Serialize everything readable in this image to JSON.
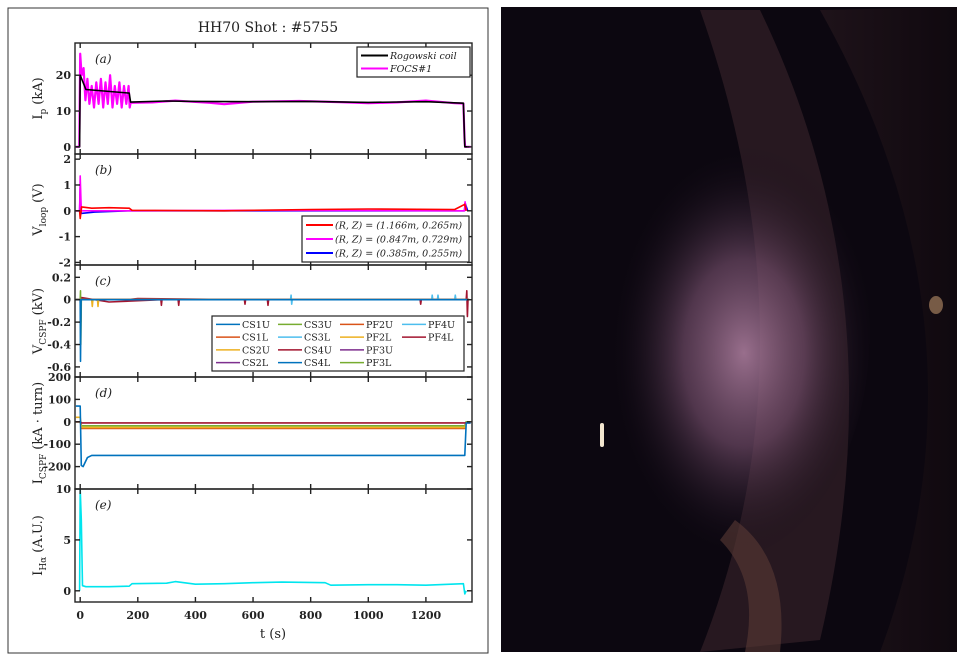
{
  "figure_title": "HH70 Shot : #5755",
  "xlabel": "t (s)",
  "x_ticks": [
    0,
    200,
    400,
    600,
    800,
    1000,
    1200
  ],
  "xlim": [
    -18,
    1360
  ],
  "photo": {
    "colors": {
      "dark": "#0c0710",
      "glow": "#a87a9a",
      "wall": "#3a2428",
      "spot": "#f3e6d0"
    }
  },
  "chart_data": [
    {
      "type": "line",
      "panel": "(a)",
      "ylabel": {
        "main": "I",
        "sub": "p",
        "unit": "(kA)"
      },
      "ylim": [
        -2,
        29
      ],
      "y_ticks": [
        0,
        10,
        20
      ],
      "grid": false,
      "legend": "top-right",
      "series": [
        {
          "name": "Rogowski coil",
          "color": "#000000",
          "points": [
            [
              -15,
              0
            ],
            [
              -2,
              0
            ],
            [
              0,
              20
            ],
            [
              20,
              16
            ],
            [
              170,
              15
            ],
            [
              175,
              12.5
            ],
            [
              300,
              12.8
            ],
            [
              400,
              12.7
            ],
            [
              600,
              12.6
            ],
            [
              800,
              12.7
            ],
            [
              1000,
              12.4
            ],
            [
              1200,
              12.6
            ],
            [
              1330,
              12.2
            ],
            [
              1335,
              0
            ],
            [
              1350,
              0
            ]
          ]
        },
        {
          "name": "FOCS#1",
          "color": "#ff00ff",
          "points": [
            [
              -15,
              0
            ],
            [
              -3,
              0
            ],
            [
              0,
              26
            ],
            [
              5,
              20
            ],
            [
              12,
              22
            ],
            [
              18,
              13
            ],
            [
              25,
              19
            ],
            [
              32,
              12
            ],
            [
              40,
              17
            ],
            [
              48,
              11
            ],
            [
              56,
              18
            ],
            [
              64,
              12
            ],
            [
              72,
              19
            ],
            [
              80,
              11
            ],
            [
              88,
              18
            ],
            [
              96,
              12
            ],
            [
              104,
              20
            ],
            [
              112,
              11
            ],
            [
              120,
              17
            ],
            [
              128,
              12
            ],
            [
              136,
              18
            ],
            [
              144,
              11
            ],
            [
              152,
              17
            ],
            [
              160,
              12
            ],
            [
              168,
              17
            ],
            [
              172,
              11
            ],
            [
              175,
              12.3
            ],
            [
              250,
              12.4
            ],
            [
              330,
              12.9
            ],
            [
              450,
              12.3
            ],
            [
              500,
              11.9
            ],
            [
              600,
              12.6
            ],
            [
              760,
              12.8
            ],
            [
              900,
              12.5
            ],
            [
              1000,
              12.2
            ],
            [
              1100,
              12.4
            ],
            [
              1200,
              12.9
            ],
            [
              1300,
              12.2
            ],
            [
              1330,
              12.1
            ],
            [
              1334,
              2.5
            ],
            [
              1336,
              0
            ],
            [
              1355,
              0
            ]
          ]
        }
      ]
    },
    {
      "type": "line",
      "panel": "(b)",
      "ylabel": {
        "main": "V",
        "sub": "loop",
        "unit": "(V)"
      },
      "ylim": [
        -2.1,
        2.2
      ],
      "y_ticks": [
        -2,
        -1,
        0,
        1,
        2
      ],
      "grid": false,
      "legend": "bottom-right",
      "series": [
        {
          "name": "(R, Z) = (1.166m, 0.265m)",
          "color": "#ff0000",
          "points": [
            [
              -15,
              0
            ],
            [
              -2,
              0
            ],
            [
              0,
              -0.3
            ],
            [
              5,
              0.15
            ],
            [
              40,
              0.1
            ],
            [
              100,
              0.12
            ],
            [
              170,
              0.1
            ],
            [
              180,
              0.02
            ],
            [
              500,
              0.0
            ],
            [
              800,
              0.05
            ],
            [
              1000,
              0.07
            ],
            [
              1300,
              0.05
            ],
            [
              1335,
              0.25
            ],
            [
              1340,
              0
            ]
          ]
        },
        {
          "name": "(R, Z) = (0.847m, 0.729m)",
          "color": "#ff00ff",
          "points": [
            [
              -15,
              0
            ],
            [
              -2,
              0
            ],
            [
              0,
              1.35
            ],
            [
              4,
              0
            ],
            [
              170,
              0
            ],
            [
              600,
              0.02
            ],
            [
              1334,
              0
            ],
            [
              1336,
              0.35
            ],
            [
              1340,
              0
            ]
          ]
        },
        {
          "name": "(R, Z) = (0.385m, 0.255m)",
          "color": "#0000ff",
          "points": [
            [
              -15,
              0
            ],
            [
              -2,
              0
            ],
            [
              0,
              0.9
            ],
            [
              3,
              -0.1
            ],
            [
              50,
              -0.05
            ],
            [
              170,
              0
            ],
            [
              600,
              0
            ],
            [
              1000,
              0
            ],
            [
              1334,
              0
            ],
            [
              1336,
              0.3
            ],
            [
              1345,
              0
            ]
          ]
        }
      ]
    },
    {
      "type": "line",
      "panel": "(c)",
      "ylabel": {
        "main": "V",
        "sub": "CSPF",
        "unit": "(kV)"
      },
      "ylim": [
        -0.69,
        0.31
      ],
      "y_ticks": [
        -0.6,
        -0.4,
        -0.2,
        0,
        0.2
      ],
      "grid": false,
      "legend": "bottom-right",
      "legend_columns": 4,
      "series": [
        {
          "name": "CS1U",
          "color": "#0072bd",
          "points": [
            [
              -15,
              0
            ],
            [
              0,
              0
            ],
            [
              1,
              -0.55
            ],
            [
              3,
              0
            ],
            [
              1350,
              0
            ]
          ]
        },
        {
          "name": "CS1L",
          "color": "#d95319",
          "points": [
            [
              -15,
              0
            ],
            [
              1350,
              0
            ]
          ]
        },
        {
          "name": "CS2U",
          "color": "#edb120",
          "points": [
            [
              -15,
              0
            ],
            [
              40,
              0
            ],
            [
              42,
              -0.06
            ],
            [
              44,
              0
            ],
            [
              60,
              0
            ],
            [
              62,
              -0.06
            ],
            [
              64,
              0
            ],
            [
              1350,
              0
            ]
          ]
        },
        {
          "name": "CS2L",
          "color": "#7e2f8e",
          "points": [
            [
              -15,
              0
            ],
            [
              1350,
              0
            ]
          ]
        },
        {
          "name": "CS3U",
          "color": "#77ac30",
          "points": [
            [
              -15,
              0
            ],
            [
              0,
              0
            ],
            [
              1,
              0.08
            ],
            [
              2,
              -0.4
            ],
            [
              4,
              0
            ],
            [
              1350,
              0
            ]
          ]
        },
        {
          "name": "CS3L",
          "color": "#4dbeee",
          "points": [
            [
              -15,
              0
            ],
            [
              730,
              0
            ],
            [
              732,
              0.04
            ],
            [
              734,
              -0.04
            ],
            [
              736,
              0
            ],
            [
              1220,
              0
            ],
            [
              1222,
              0.04
            ],
            [
              1224,
              0
            ],
            [
              1240,
              0
            ],
            [
              1242,
              0.04
            ],
            [
              1244,
              0
            ],
            [
              1300,
              0
            ],
            [
              1302,
              0.04
            ],
            [
              1304,
              0
            ],
            [
              1350,
              0
            ]
          ]
        },
        {
          "name": "CS4U",
          "color": "#a2142f",
          "points": [
            [
              -15,
              0
            ],
            [
              0,
              0
            ],
            [
              2,
              -0.2
            ],
            [
              4,
              0.02
            ],
            [
              100,
              -0.02
            ],
            [
              280,
              0
            ],
            [
              282,
              -0.05
            ],
            [
              284,
              0
            ],
            [
              340,
              0
            ],
            [
              342,
              -0.05
            ],
            [
              344,
              0
            ],
            [
              1340,
              0
            ],
            [
              1342,
              0.08
            ],
            [
              1344,
              -0.15
            ],
            [
              1346,
              0
            ]
          ]
        },
        {
          "name": "CS4L",
          "color": "#0072bd",
          "points": [
            [
              -15,
              0
            ],
            [
              1350,
              0
            ]
          ]
        },
        {
          "name": "PF2U",
          "color": "#d95319",
          "points": [
            [
              -15,
              0
            ],
            [
              1350,
              0
            ]
          ]
        },
        {
          "name": "PF2L",
          "color": "#edb120",
          "points": [
            [
              -15,
              0
            ],
            [
              1350,
              0
            ]
          ]
        },
        {
          "name": "PF3U",
          "color": "#7e2f8e",
          "points": [
            [
              -15,
              0
            ],
            [
              1350,
              0
            ]
          ]
        },
        {
          "name": "PF3L",
          "color": "#77ac30",
          "points": [
            [
              -15,
              0
            ],
            [
              1350,
              0
            ]
          ]
        },
        {
          "name": "PF4U",
          "color": "#4dbeee",
          "points": [
            [
              -15,
              0
            ],
            [
              1350,
              0
            ]
          ]
        },
        {
          "name": "PF4L",
          "color": "#a2142f",
          "points": [
            [
              -15,
              0
            ],
            [
              160,
              0
            ],
            [
              200,
              0.01
            ],
            [
              570,
              0
            ],
            [
              572,
              -0.04
            ],
            [
              574,
              0
            ],
            [
              650,
              0
            ],
            [
              652,
              -0.05
            ],
            [
              654,
              0
            ],
            [
              1180,
              0
            ],
            [
              1182,
              -0.04
            ],
            [
              1184,
              0
            ],
            [
              1350,
              0
            ]
          ]
        }
      ]
    },
    {
      "type": "line",
      "panel": "(d)",
      "ylabel": {
        "main": "I",
        "sub": "CSPF",
        "unit": "(kA · turn)"
      },
      "ylim": [
        -300,
        200
      ],
      "y_ticks": [
        -200,
        -100,
        0,
        100,
        200
      ],
      "grid": false,
      "series": [
        {
          "name": "CS1U",
          "color": "#0072bd",
          "points": [
            [
              -15,
              70
            ],
            [
              0,
              70
            ],
            [
              4,
              -195
            ],
            [
              10,
              -200
            ],
            [
              25,
              -160
            ],
            [
              40,
              -150
            ],
            [
              1335,
              -150
            ],
            [
              1340,
              -5
            ],
            [
              1355,
              -5
            ]
          ]
        },
        {
          "name": "CS4U",
          "color": "#a2142f",
          "points": [
            [
              -15,
              0
            ],
            [
              0,
              0
            ],
            [
              5,
              -5
            ],
            [
              1355,
              -5
            ]
          ]
        },
        {
          "name": "PF2L",
          "color": "#edb120",
          "points": [
            [
              -15,
              20
            ],
            [
              0,
              20
            ],
            [
              5,
              -25
            ],
            [
              1335,
              -25
            ],
            [
              1340,
              -5
            ],
            [
              1355,
              0
            ]
          ]
        },
        {
          "name": "CS3U",
          "color": "#77ac30",
          "points": [
            [
              -15,
              0
            ],
            [
              0,
              0
            ],
            [
              5,
              -18
            ],
            [
              1335,
              -18
            ],
            [
              1340,
              0
            ],
            [
              1355,
              0
            ]
          ]
        },
        {
          "name": "CS1L",
          "color": "#d95319",
          "points": [
            [
              -15,
              0
            ],
            [
              0,
              0
            ],
            [
              5,
              -30
            ],
            [
              1335,
              -30
            ],
            [
              1340,
              0
            ],
            [
              1355,
              0
            ]
          ]
        }
      ]
    },
    {
      "type": "line",
      "panel": "(e)",
      "ylabel": {
        "main": "I",
        "sub": "Hα",
        "unit": "(A.U.)"
      },
      "ylim": [
        -1.1,
        10
      ],
      "y_ticks": [
        0,
        5,
        10
      ],
      "grid": false,
      "series": [
        {
          "color": "#00e5ee",
          "points": [
            [
              -2,
              0
            ],
            [
              0,
              10
            ],
            [
              4,
              7
            ],
            [
              8,
              0.5
            ],
            [
              20,
              0.4
            ],
            [
              100,
              0.4
            ],
            [
              170,
              0.45
            ],
            [
              180,
              0.7
            ],
            [
              300,
              0.75
            ],
            [
              330,
              0.9
            ],
            [
              400,
              0.65
            ],
            [
              500,
              0.7
            ],
            [
              600,
              0.8
            ],
            [
              700,
              0.85
            ],
            [
              850,
              0.8
            ],
            [
              870,
              0.55
            ],
            [
              1000,
              0.6
            ],
            [
              1100,
              0.6
            ],
            [
              1200,
              0.55
            ],
            [
              1330,
              0.7
            ],
            [
              1335,
              -0.3
            ],
            [
              1340,
              0
            ]
          ]
        }
      ]
    }
  ]
}
